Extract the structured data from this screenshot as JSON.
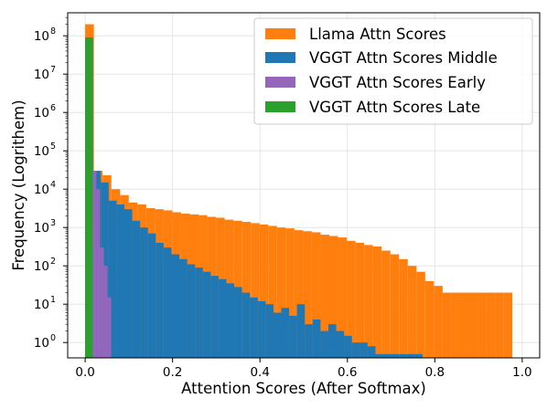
{
  "chart_data": {
    "type": "bar",
    "xlabel": "Attention Scores (After Softmax)",
    "ylabel": "Frequency (Logrithem)",
    "xlim": [
      -0.04,
      1.04
    ],
    "ylim_log10": [
      -0.4,
      8.6
    ],
    "yscale": "log",
    "grid": true,
    "legend_position": "upper right",
    "xticks": [
      0.0,
      0.2,
      0.4,
      0.6,
      0.8,
      1.0
    ],
    "xtick_labels": [
      "0.0",
      "0.2",
      "0.4",
      "0.6",
      "0.8",
      "1.0"
    ],
    "yticks_exp": [
      0,
      1,
      2,
      3,
      4,
      5,
      6,
      7,
      8
    ],
    "ytick_labels": [
      "10",
      "10",
      "10",
      "10",
      "10",
      "10",
      "10",
      "10",
      "10"
    ],
    "ytick_exponents": [
      "0",
      "1",
      "2",
      "3",
      "4",
      "5",
      "6",
      "7",
      "8"
    ],
    "series": [
      {
        "name": "Llama Attn Scores",
        "color": "#ff7f0e",
        "bin_start": 0.0,
        "bin_width": 0.01995,
        "counts": [
          200000000.0,
          30000.0,
          23000.0,
          10000.0,
          7000.0,
          4500.0,
          4000.0,
          3200.0,
          3000.0,
          2800.0,
          2500.0,
          2300.0,
          2200.0,
          2100.0,
          1900.0,
          1800.0,
          1600.0,
          1500.0,
          1400.0,
          1300.0,
          1200.0,
          1100.0,
          1000.0,
          950,
          850,
          800,
          750,
          650,
          600,
          550,
          450,
          400,
          350,
          320,
          250,
          200,
          150,
          100,
          70,
          40,
          30,
          20,
          20,
          20,
          20,
          20,
          20,
          20,
          20
        ]
      },
      {
        "name": "VGGT Attn Scores Middle",
        "color": "#1f77b4",
        "bin_start": 0.0,
        "bin_width": 0.01795,
        "counts": [
          90000000.0,
          30000.0,
          15000.0,
          5000.0,
          4000.0,
          3000.0,
          1500.0,
          1000.0,
          700,
          400,
          300,
          200,
          150,
          110,
          90,
          70,
          55,
          45,
          35,
          28,
          20,
          15,
          12,
          10,
          6,
          8,
          5,
          10,
          3,
          4,
          2,
          3,
          2,
          1.5,
          1.0,
          1.0,
          0.8,
          0.5,
          0.5,
          0.5,
          0.5,
          0.5,
          0.5,
          0.3,
          0.3,
          0.3,
          0.3,
          0.2,
          0.2,
          0.2
        ]
      },
      {
        "name": "VGGT Attn Scores Early",
        "color": "#9467bd",
        "bin_start": 0.0,
        "bin_width": 0.0085,
        "counts": [
          90000000.0,
          1000.0,
          30000.0,
          10000.0,
          300.0,
          100,
          15
        ]
      },
      {
        "name": "VGGT Attn Scores Late",
        "color": "#2ca02c",
        "bin_start": 0.0,
        "bin_width": 0.01695,
        "counts": [
          90000000.0
        ]
      }
    ],
    "legend_order": [
      0,
      1,
      2,
      3
    ]
  }
}
